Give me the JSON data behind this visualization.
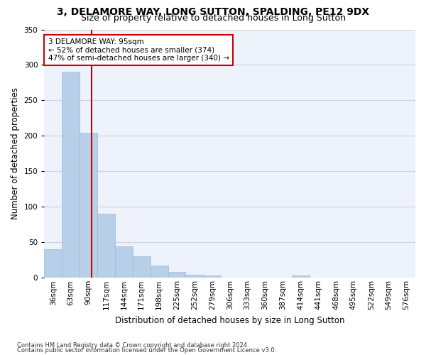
{
  "title1": "3, DELAMORE WAY, LONG SUTTON, SPALDING, PE12 9DX",
  "title2": "Size of property relative to detached houses in Long Sutton",
  "xlabel": "Distribution of detached houses by size in Long Sutton",
  "ylabel": "Number of detached properties",
  "categories": [
    "36sqm",
    "63sqm",
    "90sqm",
    "117sqm",
    "144sqm",
    "171sqm",
    "198sqm",
    "225sqm",
    "252sqm",
    "279sqm",
    "306sqm",
    "333sqm",
    "360sqm",
    "387sqm",
    "414sqm",
    "441sqm",
    "468sqm",
    "495sqm",
    "522sqm",
    "549sqm",
    "576sqm"
  ],
  "values": [
    40,
    290,
    204,
    90,
    44,
    30,
    17,
    8,
    4,
    3,
    0,
    0,
    0,
    0,
    3,
    0,
    0,
    0,
    0,
    0,
    0
  ],
  "bar_color": "#b8cfe8",
  "bar_edge_color": "#9ab8d8",
  "grid_color": "#c8d4e8",
  "background_color": "#eef2fa",
  "vline_color": "#cc0000",
  "vline_index": 2.166,
  "annotation_text": "3 DELAMORE WAY: 95sqm\n← 52% of detached houses are smaller (374)\n47% of semi-detached houses are larger (340) →",
  "annotation_box_color": "#ffffff",
  "annotation_box_edge_color": "#cc0000",
  "footnote1": "Contains HM Land Registry data © Crown copyright and database right 2024.",
  "footnote2": "Contains public sector information licensed under the Open Government Licence v3.0.",
  "ylim": [
    0,
    350
  ],
  "yticks": [
    0,
    50,
    100,
    150,
    200,
    250,
    300,
    350
  ],
  "title_fontsize": 10,
  "subtitle_fontsize": 9,
  "tick_fontsize": 7.5,
  "ylabel_fontsize": 8.5,
  "xlabel_fontsize": 8.5,
  "annotation_fontsize": 7.5
}
